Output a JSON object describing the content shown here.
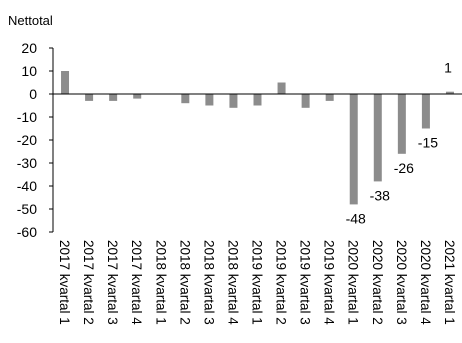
{
  "chart_data": {
    "type": "bar",
    "title": "",
    "ylabel": "Nettotal",
    "xlabel": "",
    "ylim": [
      -60,
      20
    ],
    "yticks": [
      20,
      10,
      0,
      -10,
      -20,
      -30,
      -40,
      -50,
      -60
    ],
    "grid": false,
    "legend": "none",
    "bar_color": "#8c8c8c",
    "categories": [
      "2017 kvartal 1",
      "2017 kvartal 2",
      "2017 kvartal 3",
      "2017 kvartal 4",
      "2018 kvartal 1",
      "2018 kvartal 2",
      "2018 kvartal 3",
      "2018 kvartal 4",
      "2019 kvartal 1",
      "2019 kvartal 2",
      "2019 kvartal 3",
      "2019 kvartal 4",
      "2020 kvartal 1",
      "2020 kvartal 2",
      "2020 kvartal 3",
      "2020 kvartal 4",
      "2021 kvartal 1"
    ],
    "values": [
      10,
      -3,
      -3,
      -2,
      0,
      -4,
      -5,
      -6,
      -5,
      5,
      -6,
      -3,
      -48,
      -38,
      -26,
      -15,
      1
    ],
    "data_labels": [
      null,
      null,
      null,
      null,
      null,
      null,
      null,
      null,
      null,
      null,
      null,
      null,
      "-48",
      "-38",
      "-26",
      "-15",
      "1"
    ]
  }
}
